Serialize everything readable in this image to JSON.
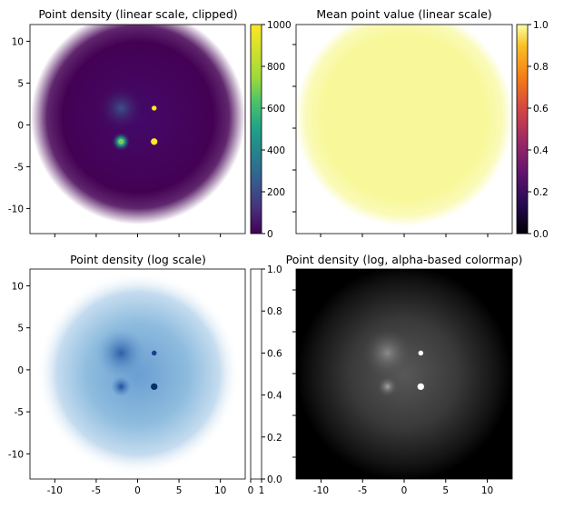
{
  "chart_data": [
    {
      "type": "heatmap",
      "title": "Point density (linear scale, clipped)",
      "colormap": "viridis",
      "xlim": [
        -13,
        13
      ],
      "ylim": [
        -13,
        12
      ],
      "yticks": [
        10,
        5,
        0,
        -5,
        -10
      ],
      "xticks": [],
      "blobs": [
        {
          "x": -2,
          "y": 2,
          "sigma": 1.5,
          "level": 0.13
        },
        {
          "x": 2,
          "y": 2,
          "sigma": 0.15,
          "level": 0.85
        },
        {
          "x": -2,
          "y": -2,
          "sigma": 0.6,
          "level": 0.55
        },
        {
          "x": 2,
          "y": -2,
          "sigma": 0.2,
          "level": 1.0
        }
      ],
      "colorbar": {
        "range": [
          0,
          1000
        ],
        "ticks": [
          1000,
          800,
          600,
          400,
          200,
          0
        ]
      }
    },
    {
      "type": "heatmap",
      "title": "Mean point value (linear scale)",
      "colormap": "inferno",
      "xlim": [
        -13,
        13
      ],
      "ylim": [
        -13,
        12
      ],
      "fill_color": "#f8f89a",
      "colorbar": {
        "range": [
          0.0,
          1.0
        ],
        "ticks": [
          "1.0",
          "0.8",
          "0.6",
          "0.4",
          "0.2",
          "0.0"
        ]
      }
    },
    {
      "type": "heatmap",
      "title": "Point density (log scale)",
      "colormap": "blues",
      "xlim": [
        -13,
        13
      ],
      "ylim": [
        -13,
        12
      ],
      "yticks": [
        10,
        5,
        0,
        -5,
        -10
      ],
      "xticks": [
        -10,
        -5,
        0,
        5,
        10
      ],
      "blobs": [
        {
          "x": -2,
          "y": 2,
          "sigma": 1.5,
          "level": 0.6
        },
        {
          "x": 2,
          "y": 2,
          "sigma": 0.15,
          "level": 0.9
        },
        {
          "x": -2,
          "y": -2,
          "sigma": 0.6,
          "level": 0.75
        },
        {
          "x": 2,
          "y": -2,
          "sigma": 0.2,
          "level": 1.0
        }
      ],
      "colorbar": {
        "range": [
          0.0,
          1.0
        ],
        "ticks": [
          "1.0",
          "0.8",
          "0.6",
          "0.4",
          "0.2",
          "0.0"
        ],
        "xticks": [
          "0",
          "1"
        ]
      }
    },
    {
      "type": "heatmap",
      "title": "Point density (log, alpha-based colormap)",
      "colormap": "alpha-white-on-black",
      "xlim": [
        -13,
        13
      ],
      "ylim": [
        -13,
        12
      ],
      "xticks": [
        -10,
        -5,
        0,
        5,
        10
      ],
      "blobs": [
        {
          "x": -2,
          "y": 2,
          "sigma": 1.5,
          "level": 0.5
        },
        {
          "x": 2,
          "y": 2,
          "sigma": 0.15,
          "level": 0.9
        },
        {
          "x": -2,
          "y": -2,
          "sigma": 0.6,
          "level": 0.65
        },
        {
          "x": 2,
          "y": -2,
          "sigma": 0.2,
          "level": 1.0
        }
      ]
    }
  ]
}
